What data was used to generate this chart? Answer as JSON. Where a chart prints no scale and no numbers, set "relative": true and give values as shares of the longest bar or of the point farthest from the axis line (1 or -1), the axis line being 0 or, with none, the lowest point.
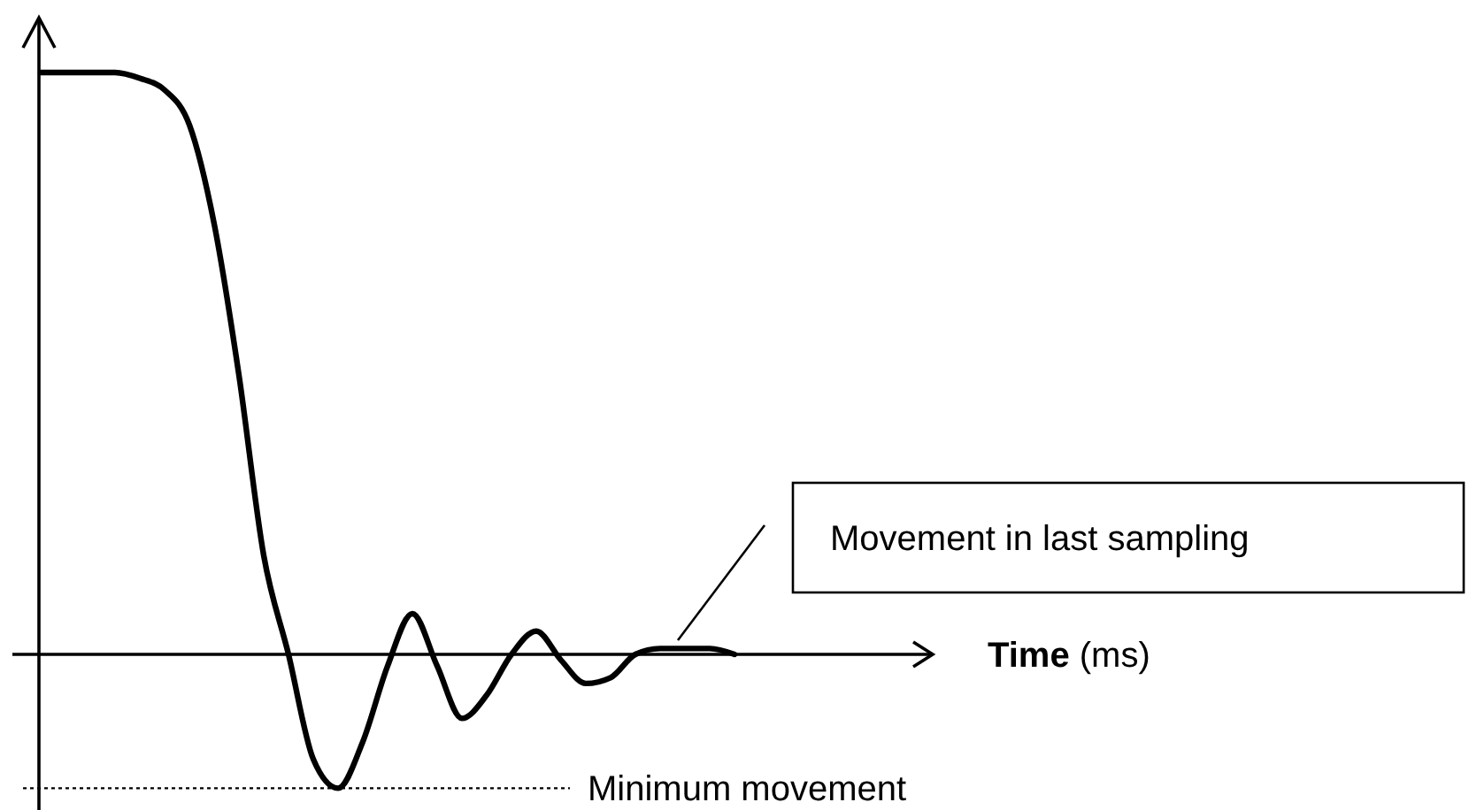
{
  "chart_data": {
    "type": "line",
    "relative": true,
    "categories": [
      null,
      null,
      null,
      null,
      null,
      null,
      null,
      null,
      null,
      null,
      null,
      null,
      null,
      null,
      null,
      null,
      null,
      null,
      null,
      null,
      null,
      null,
      null,
      null,
      null,
      null,
      null,
      null,
      null
    ],
    "series": [
      {
        "color": "#000000",
        "values": [
          1,
          1,
          1,
          1,
          0.99,
          0.97,
          0.91,
          0.74,
          0.48,
          0.17,
          0,
          -0.18,
          -0.23,
          -0.15,
          -0.02,
          0.07,
          -0.02,
          -0.11,
          -0.07,
          0,
          0.04,
          -0.01,
          -0.05,
          -0.04,
          0,
          0.01,
          0.01,
          0.01,
          0
        ]
      }
    ],
    "ref_lines": [
      {
        "axis": "y",
        "value": -0.23,
        "label": "Minimum movement",
        "line_style": "dotted",
        "color": "#000000"
      }
    ],
    "annotations": [
      "Movement in last sampling",
      "Time (ms)"
    ],
    "grid": false,
    "marker": "none",
    "line_style": "solid"
  }
}
